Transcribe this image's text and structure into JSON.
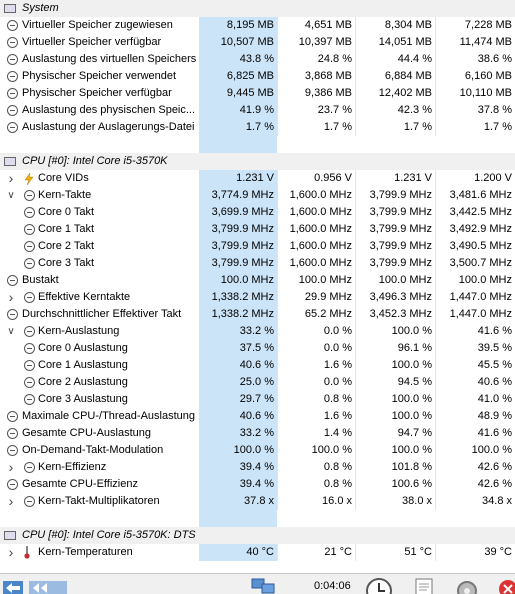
{
  "sections": [
    {
      "title": "System",
      "rows": [
        {
          "label": "Virtueller Speicher zugewiesen",
          "icon": "clock-icon",
          "v": [
            "8,195 MB",
            "4,651 MB",
            "8,304 MB",
            "7,228 MB"
          ]
        },
        {
          "label": "Virtueller Speicher verfügbar",
          "icon": "clock-icon",
          "v": [
            "10,507 MB",
            "10,397 MB",
            "14,051 MB",
            "11,474 MB"
          ]
        },
        {
          "label": "Auslastung des virtuellen Speichers",
          "icon": "clock-icon",
          "v": [
            "43.8 %",
            "24.8 %",
            "44.4 %",
            "38.6 %"
          ]
        },
        {
          "label": "Physischer Speicher verwendet",
          "icon": "clock-icon",
          "v": [
            "6,825 MB",
            "3,868 MB",
            "6,884 MB",
            "6,160 MB"
          ]
        },
        {
          "label": "Physischer Speicher verfügbar",
          "icon": "clock-icon",
          "v": [
            "9,445 MB",
            "9,386 MB",
            "12,402 MB",
            "10,110 MB"
          ]
        },
        {
          "label": "Auslastung des physischen Speic...",
          "icon": "clock-icon",
          "v": [
            "41.9 %",
            "23.7 %",
            "42.3 %",
            "37.8 %"
          ]
        },
        {
          "label": "Auslastung der Auslagerungs-Datei",
          "icon": "clock-icon",
          "v": [
            "1.7 %",
            "1.7 %",
            "1.7 %",
            "1.7 %"
          ]
        }
      ]
    },
    {
      "title": "CPU [#0]: Intel Core i5-3570K",
      "rows": [
        {
          "label": "Core VIDs",
          "icon": "bolt-icon",
          "chevron": "right",
          "indent": 0,
          "v": [
            "1.231 V",
            "0.956 V",
            "1.231 V",
            "1.200 V"
          ]
        },
        {
          "label": "Kern-Takte",
          "icon": "clock-icon",
          "chevron": "down",
          "indent": 0,
          "v": [
            "3,774.9 MHz",
            "1,600.0 MHz",
            "3,799.9 MHz",
            "3,481.6 MHz"
          ]
        },
        {
          "label": "Core 0 Takt",
          "icon": "clock-icon",
          "indent": 1,
          "v": [
            "3,699.9 MHz",
            "1,600.0 MHz",
            "3,799.9 MHz",
            "3,442.5 MHz"
          ]
        },
        {
          "label": "Core 1 Takt",
          "icon": "clock-icon",
          "indent": 1,
          "v": [
            "3,799.9 MHz",
            "1,600.0 MHz",
            "3,799.9 MHz",
            "3,492.9 MHz"
          ]
        },
        {
          "label": "Core 2 Takt",
          "icon": "clock-icon",
          "indent": 1,
          "v": [
            "3,799.9 MHz",
            "1,600.0 MHz",
            "3,799.9 MHz",
            "3,490.5 MHz"
          ]
        },
        {
          "label": "Core 3 Takt",
          "icon": "clock-icon",
          "indent": 1,
          "v": [
            "3,799.9 MHz",
            "1,600.0 MHz",
            "3,799.9 MHz",
            "3,500.7 MHz"
          ]
        },
        {
          "label": "Bustakt",
          "icon": "clock-icon",
          "indent": -1,
          "v": [
            "100.0 MHz",
            "100.0 MHz",
            "100.0 MHz",
            "100.0 MHz"
          ]
        },
        {
          "label": "Effektive Kerntakte",
          "icon": "clock-icon",
          "chevron": "right",
          "indent": 0,
          "v": [
            "1,338.2 MHz",
            "29.9 MHz",
            "3,496.3 MHz",
            "1,447.0 MHz"
          ]
        },
        {
          "label": "Durchschnittlicher Effektiver Takt",
          "icon": "clock-icon",
          "indent": -1,
          "v": [
            "1,338.2 MHz",
            "65.2 MHz",
            "3,452.3 MHz",
            "1,447.0 MHz"
          ]
        },
        {
          "label": "Kern-Auslastung",
          "icon": "clock-icon",
          "chevron": "down",
          "indent": 0,
          "v": [
            "33.2 %",
            "0.0 %",
            "100.0 %",
            "41.6 %"
          ]
        },
        {
          "label": "Core 0 Auslastung",
          "icon": "clock-icon",
          "indent": 1,
          "v": [
            "37.5 %",
            "0.0 %",
            "96.1 %",
            "39.5 %"
          ]
        },
        {
          "label": "Core 1 Auslastung",
          "icon": "clock-icon",
          "indent": 1,
          "v": [
            "40.6 %",
            "1.6 %",
            "100.0 %",
            "45.5 %"
          ]
        },
        {
          "label": "Core 2 Auslastung",
          "icon": "clock-icon",
          "indent": 1,
          "v": [
            "25.0 %",
            "0.0 %",
            "94.5 %",
            "40.6 %"
          ]
        },
        {
          "label": "Core 3 Auslastung",
          "icon": "clock-icon",
          "indent": 1,
          "v": [
            "29.7 %",
            "0.8 %",
            "100.0 %",
            "41.0 %"
          ]
        },
        {
          "label": "Maximale CPU-/Thread-Auslastung",
          "icon": "clock-icon",
          "indent": -1,
          "v": [
            "40.6 %",
            "1.6 %",
            "100.0 %",
            "48.9 %"
          ]
        },
        {
          "label": "Gesamte CPU-Auslastung",
          "icon": "clock-icon",
          "indent": -1,
          "v": [
            "33.2 %",
            "1.4 %",
            "94.7 %",
            "41.6 %"
          ]
        },
        {
          "label": "On-Demand-Takt-Modulation",
          "icon": "clock-icon",
          "indent": -1,
          "v": [
            "100.0 %",
            "100.0 %",
            "100.0 %",
            "100.0 %"
          ]
        },
        {
          "label": "Kern-Effizienz",
          "icon": "clock-icon",
          "chevron": "right",
          "indent": 0,
          "v": [
            "39.4 %",
            "0.8 %",
            "101.8 %",
            "42.6 %"
          ]
        },
        {
          "label": "Gesamte CPU-Effizienz",
          "icon": "clock-icon",
          "indent": -1,
          "v": [
            "39.4 %",
            "0.8 %",
            "100.6 %",
            "42.6 %"
          ]
        },
        {
          "label": "Kern-Takt-Multiplikatoren",
          "icon": "clock-icon",
          "chevron": "right",
          "indent": 0,
          "v": [
            "37.8 x",
            "16.0 x",
            "38.0 x",
            "34.8 x"
          ]
        }
      ]
    },
    {
      "title": "CPU [#0]: Intel Core i5-3570K: DTS",
      "rows": [
        {
          "label": "Kern-Temperaturen",
          "icon": "thermometer-icon",
          "chevron": "right",
          "indent": 0,
          "v": [
            "40 °C",
            "21 °C",
            "51 °C",
            "39 °C"
          ]
        }
      ]
    }
  ],
  "toolbar": {
    "elapsed_time": "0:04:06"
  }
}
